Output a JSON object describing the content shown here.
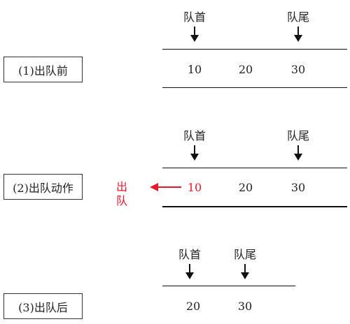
{
  "colors": {
    "dequeue": "#e8192c",
    "line": "#111111",
    "text": "#222222"
  },
  "stages": [
    {
      "label": "(1)出队前",
      "front_label": "队首",
      "rear_label": "队尾",
      "values": [
        "10",
        "20",
        "30"
      ]
    },
    {
      "label": "(2)出队动作",
      "front_label": "队首",
      "rear_label": "队尾",
      "values": [
        "10",
        "20",
        "30"
      ],
      "dequeue_label": "出队"
    },
    {
      "label": "(3)出队后",
      "front_label": "队首",
      "rear_label": "队尾",
      "values": [
        "20",
        "30"
      ]
    }
  ]
}
